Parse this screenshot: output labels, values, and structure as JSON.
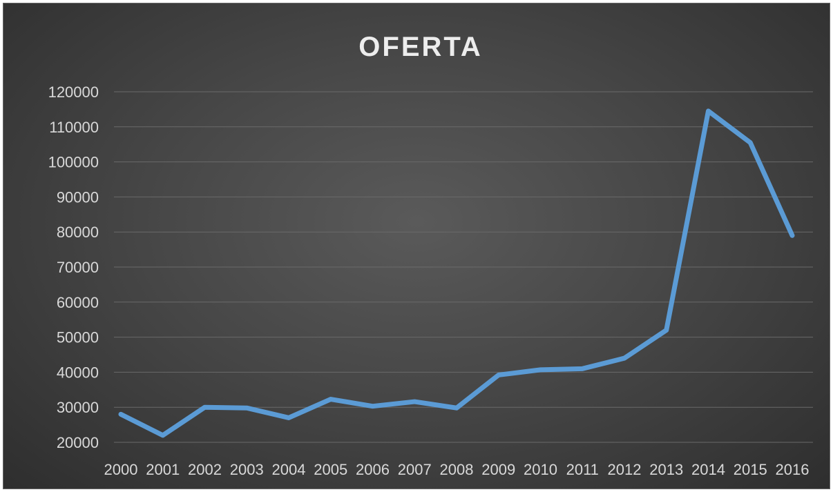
{
  "chart_data": {
    "type": "line",
    "title": "OFERTA",
    "xlabel": "",
    "ylabel": "",
    "categories": [
      "2000",
      "2001",
      "2002",
      "2003",
      "2004",
      "2005",
      "2006",
      "2007",
      "2008",
      "2009",
      "2010",
      "2011",
      "2012",
      "2013",
      "2014",
      "2015",
      "2016"
    ],
    "series": [
      {
        "values": [
          28000,
          22000,
          30000,
          29800,
          27000,
          32300,
          30300,
          31600,
          29800,
          39200,
          40700,
          41000,
          44000,
          52000,
          114500,
          105500,
          79000
        ],
        "color": "#5b9bd5"
      }
    ],
    "ylim": [
      20000,
      120000
    ],
    "yticks": [
      "20000",
      "30000",
      "40000",
      "50000",
      "60000",
      "70000",
      "80000",
      "90000",
      "100000",
      "110000",
      "120000"
    ],
    "grid": true,
    "legend": "none"
  }
}
